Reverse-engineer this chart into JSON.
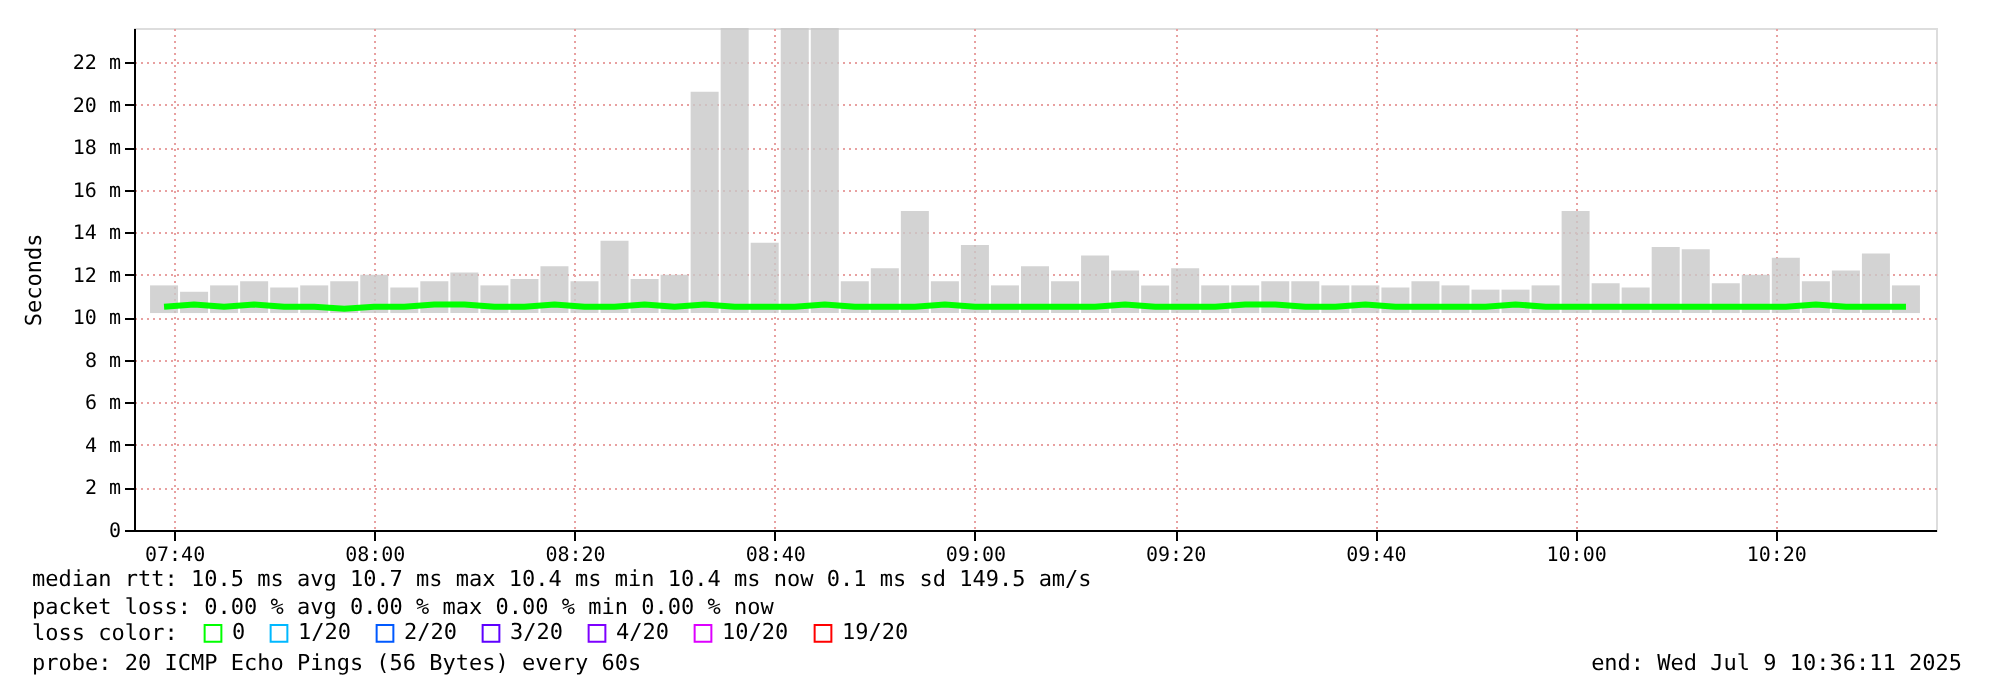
{
  "chart_data": {
    "type": "line",
    "ylabel": "Seconds",
    "x": [
      7.65,
      7.7,
      7.75,
      7.8,
      7.85,
      7.9,
      7.95,
      8.0,
      8.05,
      8.1,
      8.15,
      8.2,
      8.25,
      8.3,
      8.35,
      8.4,
      8.45,
      8.5,
      8.55,
      8.6,
      8.65,
      8.7,
      8.75,
      8.8,
      8.85,
      8.9,
      8.95,
      9.0,
      9.05,
      9.1,
      9.15,
      9.2,
      9.25,
      9.3,
      9.35,
      9.4,
      9.45,
      9.5,
      9.55,
      9.6,
      9.65,
      9.7,
      9.75,
      9.8,
      9.85,
      9.9,
      9.95,
      10.0,
      10.05,
      10.1,
      10.15,
      10.2,
      10.25,
      10.3,
      10.35,
      10.4,
      10.45,
      10.5,
      10.55
    ],
    "series": [
      {
        "type": "bar",
        "color": "#c8c8c8",
        "base": [
          10.2,
          10.2,
          10.2,
          10.2,
          10.2,
          10.2,
          10.2,
          10.2,
          10.2,
          10.2,
          10.2,
          10.2,
          10.2,
          10.2,
          10.2,
          10.2,
          10.2,
          10.2,
          10.2,
          10.2,
          10.2,
          10.2,
          10.2,
          10.2,
          10.2,
          10.2,
          10.2,
          10.2,
          10.2,
          10.2,
          10.2,
          10.2,
          10.2,
          10.2,
          10.2,
          10.2,
          10.2,
          10.2,
          10.2,
          10.2,
          10.2,
          10.2,
          10.2,
          10.2,
          10.2,
          10.2,
          10.2,
          10.2,
          10.2,
          10.2,
          10.2,
          10.2,
          10.2,
          10.2,
          10.2,
          10.2,
          10.2,
          10.2,
          10.2
        ],
        "values": [
          1.3,
          1.0,
          1.3,
          1.5,
          1.2,
          1.3,
          1.5,
          1.8,
          1.2,
          1.5,
          1.9,
          1.3,
          1.6,
          2.2,
          1.5,
          3.4,
          1.6,
          1.8,
          10.4,
          13.4,
          3.3,
          13.4,
          13.4,
          1.5,
          2.1,
          4.8,
          1.5,
          3.2,
          1.3,
          2.2,
          1.5,
          2.7,
          2.0,
          1.3,
          2.1,
          1.3,
          1.3,
          1.5,
          1.5,
          1.3,
          1.3,
          1.2,
          1.5,
          1.3,
          1.1,
          1.1,
          1.3,
          4.8,
          1.4,
          1.2,
          3.1,
          3.0,
          1.4,
          1.8,
          2.6,
          1.5,
          2.0,
          2.8,
          1.3
        ]
      },
      {
        "name": "0",
        "color": "#00ff00",
        "values": [
          10.5,
          10.6,
          10.5,
          10.6,
          10.5,
          10.5,
          10.4,
          10.5,
          10.5,
          10.6,
          10.6,
          10.5,
          10.5,
          10.6,
          10.5,
          10.5,
          10.6,
          10.5,
          10.6,
          10.5,
          10.5,
          10.5,
          10.6,
          10.5,
          10.5,
          10.5,
          10.6,
          10.5,
          10.5,
          10.5,
          10.5,
          10.5,
          10.6,
          10.5,
          10.5,
          10.5,
          10.6,
          10.6,
          10.5,
          10.5,
          10.6,
          10.5,
          10.5,
          10.5,
          10.5,
          10.6,
          10.5,
          10.5,
          10.5,
          10.5,
          10.5,
          10.5,
          10.5,
          10.5,
          10.5,
          10.6,
          10.5,
          10.5,
          10.5
        ]
      },
      {
        "name": "1/20",
        "color": "#00b8ff",
        "values": [
          null,
          null,
          null,
          null,
          null,
          null,
          null,
          null,
          null,
          null,
          null,
          null,
          null,
          null,
          null,
          null,
          null,
          null,
          null,
          null,
          null,
          null,
          null,
          null,
          null,
          null,
          null,
          null,
          null,
          null,
          null,
          null,
          null,
          null,
          null,
          null,
          null,
          null,
          null,
          null,
          null,
          null,
          null,
          null,
          null,
          null,
          null,
          null,
          null,
          null,
          null,
          null,
          null,
          null,
          null,
          null,
          null,
          null,
          null
        ]
      },
      {
        "name": "2/20",
        "color": "#0059ff",
        "values": [
          null,
          null,
          null,
          null,
          null,
          null,
          null,
          null,
          null,
          null,
          null,
          null,
          null,
          null,
          null,
          null,
          null,
          null,
          null,
          null,
          null,
          null,
          null,
          null,
          null,
          null,
          null,
          null,
          null,
          null,
          null,
          null,
          null,
          null,
          null,
          null,
          null,
          null,
          null,
          null,
          null,
          null,
          null,
          null,
          null,
          null,
          null,
          null,
          null,
          null,
          null,
          null,
          null,
          null,
          null,
          null,
          null,
          null,
          null
        ]
      },
      {
        "name": "3/20",
        "color": "#5e00ff",
        "values": [
          null,
          null,
          null,
          null,
          null,
          null,
          null,
          null,
          null,
          null,
          null,
          null,
          null,
          null,
          null,
          null,
          null,
          null,
          null,
          null,
          null,
          null,
          null,
          null,
          null,
          null,
          null,
          null,
          null,
          null,
          null,
          null,
          null,
          null,
          null,
          null,
          null,
          null,
          null,
          null,
          null,
          null,
          null,
          null,
          null,
          null,
          null,
          null,
          null,
          null,
          null,
          null,
          null,
          null,
          null,
          null,
          null,
          null,
          null
        ]
      },
      {
        "name": "4/20",
        "color": "#7e00ff",
        "values": [
          null,
          null,
          null,
          null,
          null,
          null,
          null,
          null,
          null,
          null,
          null,
          null,
          null,
          null,
          null,
          null,
          null,
          null,
          null,
          null,
          null,
          null,
          null,
          null,
          null,
          null,
          null,
          null,
          null,
          null,
          null,
          null,
          null,
          null,
          null,
          null,
          null,
          null,
          null,
          null,
          null,
          null,
          null,
          null,
          null,
          null,
          null,
          null,
          null,
          null,
          null,
          null,
          null,
          null,
          null,
          null,
          null,
          null,
          null
        ]
      },
      {
        "name": "10/20",
        "color": "#dd00ff",
        "values": [
          null,
          null,
          null,
          null,
          null,
          null,
          null,
          null,
          null,
          null,
          null,
          null,
          null,
          null,
          null,
          null,
          null,
          null,
          null,
          null,
          null,
          null,
          null,
          null,
          null,
          null,
          null,
          null,
          null,
          null,
          null,
          null,
          null,
          null,
          null,
          null,
          null,
          null,
          null,
          null,
          null,
          null,
          null,
          null,
          null,
          null,
          null,
          null,
          null,
          null,
          null,
          null,
          null,
          null,
          null,
          null,
          null,
          null,
          null
        ]
      },
      {
        "name": "19/20",
        "color": "#ff0000",
        "values": [
          null,
          null,
          null,
          null,
          null,
          null,
          null,
          null,
          null,
          null,
          null,
          null,
          null,
          null,
          null,
          null,
          null,
          null,
          null,
          null,
          null,
          null,
          null,
          null,
          null,
          null,
          null,
          null,
          null,
          null,
          null,
          null,
          null,
          null,
          null,
          null,
          null,
          null,
          null,
          null,
          null,
          null,
          null,
          null,
          null,
          null,
          null,
          null,
          null,
          null,
          null,
          null,
          null,
          null,
          null,
          null,
          null,
          null,
          null
        ]
      }
    ],
    "legend_title": "loss color:",
    "legend": "bottom left",
    "xlim": [
      7.6,
      10.6
    ],
    "xticks": [
      {
        "value": 7.6667,
        "label": "07:40"
      },
      {
        "value": 8.0,
        "label": "08:00"
      },
      {
        "value": 8.3333,
        "label": "08:20"
      },
      {
        "value": 8.6667,
        "label": "08:40"
      },
      {
        "value": 9.0,
        "label": "09:00"
      },
      {
        "value": 9.3333,
        "label": "09:20"
      },
      {
        "value": 9.6667,
        "label": "09:40"
      },
      {
        "value": 10.0,
        "label": "10:00"
      },
      {
        "value": 10.3333,
        "label": "10:20"
      }
    ],
    "ylim": [
      0,
      23.6
    ],
    "yticks": [
      0,
      {
        "value": 2,
        "label": "2 m"
      },
      {
        "value": 4,
        "label": "4 m"
      },
      {
        "value": 6,
        "label": "6 m"
      },
      {
        "value": 8,
        "label": "8 m"
      },
      {
        "value": 10,
        "label": "10 m"
      },
      {
        "value": 12,
        "label": "12 m"
      },
      {
        "value": 14,
        "label": "14 m"
      },
      {
        "value": 16,
        "label": "16 m"
      },
      {
        "value": 18,
        "label": "18 m"
      },
      {
        "value": 20,
        "label": "20 m"
      },
      {
        "value": 22,
        "label": "22 m"
      }
    ],
    "grid": true,
    "line_style": "solid",
    "marker": "none",
    "annotations": [
      "median rtt:  10.5 ms avg  10.7 ms max  10.4 ms min  10.4 ms now  0.1 ms sd  149.5   am/s",
      "packet loss: 0.00 % avg  0.00 % max  0.00 % min  0.00 % now",
      "probe:       20 ICMP Echo Pings (56 Bytes) every 60s",
      "end: Wed Jul  9 10:36:11 2025"
    ]
  }
}
